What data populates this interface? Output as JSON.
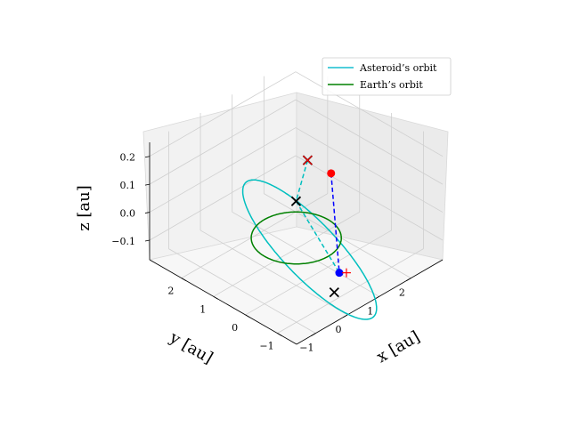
{
  "chart_data": {
    "type": "line",
    "projection": "3d",
    "title": "",
    "xlabel": "$x$ [au]",
    "ylabel": "$y$ [au]",
    "zlabel": "$z$ [au]",
    "xlabel_text": "x [au]",
    "ylabel_text": "y [au]",
    "zlabel_text": "z [au]",
    "xlim": [
      -1.6,
      3.0
    ],
    "ylim": [
      -1.6,
      3.0
    ],
    "zlim": [
      -0.17,
      0.25
    ],
    "x_ticks": [
      {
        "value": -1,
        "label": "−1"
      },
      {
        "value": 0,
        "label": "0"
      },
      {
        "value": 1,
        "label": "1"
      },
      {
        "value": 2,
        "label": "2"
      }
    ],
    "y_ticks": [
      {
        "value": -1,
        "label": "−1"
      },
      {
        "value": 0,
        "label": "0"
      },
      {
        "value": 1,
        "label": "1"
      },
      {
        "value": 2,
        "label": "2"
      }
    ],
    "z_ticks": [
      {
        "value": -0.1,
        "label": "−0.1"
      },
      {
        "value": 0.0,
        "label": "0.0"
      },
      {
        "value": 0.1,
        "label": "0.1"
      },
      {
        "value": 0.2,
        "label": "0.2"
      }
    ],
    "grid": true,
    "legend_position": "top-right",
    "legend": [
      {
        "label": "Asteroid’s orbit",
        "color": "#17becf"
      },
      {
        "label": "Earth’s orbit",
        "color": "#008000"
      }
    ],
    "series": [
      {
        "name": "Asteroid’s orbit",
        "kind": "orbit",
        "color": "#00bfbf",
        "semi_major_axis": 1.5,
        "eccentricity": 0.2,
        "inclination_deg": 8.0,
        "node_longitude_deg": 45.0,
        "perihelion_argument_deg": 90.0
      },
      {
        "name": "Earth’s orbit",
        "kind": "orbit",
        "color": "#008000",
        "semi_major_axis": 1.0,
        "eccentricity": 0.0,
        "inclination_deg": 0.0,
        "node_longitude_deg": 0.0,
        "perihelion_argument_deg": 0.0
      }
    ],
    "markers": [
      {
        "kind": "cross",
        "color": "#000000",
        "x": 1.0,
        "y": 1.0,
        "z": 0.0
      },
      {
        "kind": "cross",
        "color": "#000000",
        "x": 0.88,
        "y": 0.52,
        "z": 0.186
      },
      {
        "kind": "cross",
        "color": "#ff0000",
        "x": 0.88,
        "y": 0.52,
        "z": 0.186
      },
      {
        "kind": "dot",
        "color": "#ff0000",
        "x": 1.7,
        "y": 0.6,
        "z": 0.08
      },
      {
        "kind": "dot",
        "color": "#0000ff",
        "x": 0.45,
        "y": -0.9,
        "z": -0.095
      },
      {
        "kind": "cross",
        "color": "#000000",
        "x": 0.12,
        "y": -1.07,
        "z": -0.132
      },
      {
        "kind": "plus",
        "color": "#ff0000",
        "x": 0.45,
        "y": -0.9,
        "z": -0.095
      }
    ],
    "segments": [
      {
        "color": "#00bfbf",
        "style": "dashed",
        "from": {
          "x": 0.88,
          "y": 0.52,
          "z": 0.186
        },
        "to": {
          "x": 1.0,
          "y": 1.0,
          "z": 0.0
        }
      },
      {
        "color": "#00bfbf",
        "style": "dashed",
        "from": {
          "x": 1.0,
          "y": 1.0,
          "z": 0.0
        },
        "to": {
          "x": 0.45,
          "y": -0.9,
          "z": -0.095
        }
      },
      {
        "color": "#0000ff",
        "style": "dashed",
        "from": {
          "x": 1.7,
          "y": 0.6,
          "z": 0.08
        },
        "to": {
          "x": 0.45,
          "y": -0.9,
          "z": -0.095
        }
      }
    ]
  }
}
